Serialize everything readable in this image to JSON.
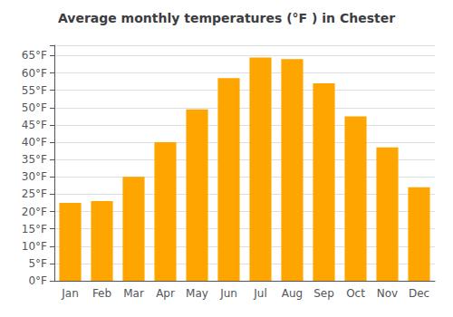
{
  "chart_data": {
    "type": "bar",
    "title": "Average monthly temperatures (°F ) in Chester",
    "categories": [
      "Jan",
      "Feb",
      "Mar",
      "Apr",
      "May",
      "Jun",
      "Jul",
      "Aug",
      "Sep",
      "Oct",
      "Nov",
      "Dec"
    ],
    "values": [
      22.5,
      23.0,
      30.0,
      40.0,
      49.5,
      58.5,
      64.5,
      64.0,
      57.0,
      47.5,
      38.5,
      27.0
    ],
    "color": "#FFA500",
    "ylim": [
      0,
      68
    ],
    "yticks": [
      {
        "value": 0,
        "label": "0°F"
      },
      {
        "value": 5,
        "label": "5°F"
      },
      {
        "value": 10,
        "label": "10°F"
      },
      {
        "value": 15,
        "label": "15°F"
      },
      {
        "value": 20,
        "label": "20°F"
      },
      {
        "value": 25,
        "label": "25°F"
      },
      {
        "value": 30,
        "label": "30°F"
      },
      {
        "value": 35,
        "label": "35°F"
      },
      {
        "value": 40,
        "label": "40°F"
      },
      {
        "value": 45,
        "label": "45°F"
      },
      {
        "value": 50,
        "label": "50°F"
      },
      {
        "value": 55,
        "label": "55°F"
      },
      {
        "value": 60,
        "label": "60°F"
      },
      {
        "value": 65,
        "label": "65°F"
      }
    ],
    "grid": true
  }
}
